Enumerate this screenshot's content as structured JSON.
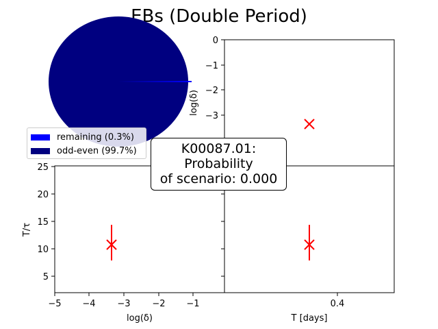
{
  "title": "EBs (Double Period)",
  "annotation": {
    "lines": [
      "K00087.01:",
      "Probability",
      "of scenario: 0.000"
    ]
  },
  "legend": [
    {
      "label": "remaining (0.3%)",
      "color": "#0000ff"
    },
    {
      "label": "odd-even (99.7%)",
      "color": "#000080"
    }
  ],
  "chart_data": [
    {
      "type": "pie",
      "slices": [
        {
          "name": "remaining (0.3%)",
          "value": 0.3,
          "color": "#0000ff"
        },
        {
          "name": "odd-even (99.7%)",
          "value": 99.7,
          "color": "#000080"
        }
      ]
    },
    {
      "type": "scatter",
      "panel": "top-right",
      "xlabel": "",
      "ylabel": "log(δ)",
      "ylim": [
        -5,
        0
      ],
      "yticks": [
        "0",
        "−1",
        "−2",
        "−3"
      ],
      "points": [
        {
          "x": 0.4,
          "y": -3.3
        }
      ]
    },
    {
      "type": "scatter",
      "panel": "bottom-left",
      "xlabel": "log(δ)",
      "ylabel": "T/τ",
      "xlim": [
        -5,
        0
      ],
      "ylim": [
        2,
        25
      ],
      "xticks": [
        "−5",
        "−4",
        "−3",
        "−2",
        "−1"
      ],
      "yticks": [
        "5",
        "10",
        "15",
        "20",
        "25"
      ],
      "points": [
        {
          "x": -3.3,
          "y": 10.6,
          "yerr": 3.3
        }
      ]
    },
    {
      "type": "scatter",
      "panel": "bottom-right",
      "xlabel": "T [days]",
      "ylabel": "",
      "xticks": [
        "0.4"
      ],
      "points": [
        {
          "x": 0.4,
          "y": 10.6,
          "yerr": 3.3
        }
      ]
    }
  ]
}
